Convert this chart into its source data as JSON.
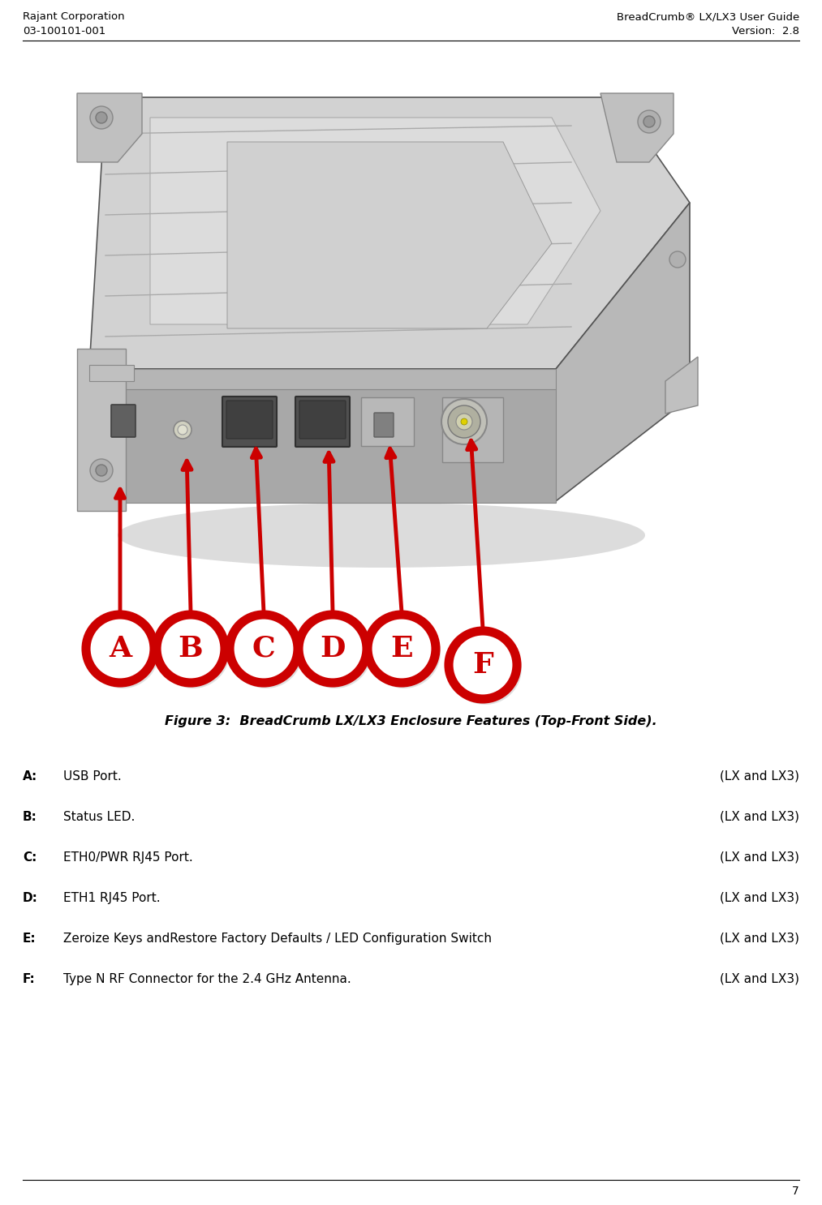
{
  "header_left_line1": "Rajant Corporation",
  "header_left_line2": "03-100101-001",
  "header_right_line1": "BreadCrumb® LX/LX3 User Guide",
  "header_right_line2": "Version:  2.8",
  "figure_caption": "Figure 3:  BreadCrumb LX/LX3 Enclosure Features (Top-Front Side).",
  "page_number": "7",
  "labels": [
    "A",
    "B",
    "C",
    "D",
    "E",
    "F"
  ],
  "items": [
    {
      "label": "A",
      "desc": "USB Port.",
      "suffix": "(LX and LX3)"
    },
    {
      "label": "B",
      "desc": "Status LED.",
      "suffix": "(LX and LX3)"
    },
    {
      "label": "C",
      "desc": "ETH0/PWR RJ45 Port.",
      "suffix": "(LX and LX3)"
    },
    {
      "label": "D",
      "desc": "ETH1 RJ45 Port.",
      "suffix": "(LX and LX3)"
    },
    {
      "label": "E",
      "desc": "Zeroize Keys andRestore Factory Defaults / LED Configuration Switch",
      "suffix": "(LX and LX3)"
    },
    {
      "label": "F",
      "desc": "Type N RF Connector for the 2.4 GHz Antenna.",
      "suffix": "(LX and LX3)"
    }
  ],
  "circle_color": "#cc0000",
  "arrow_color": "#cc0000",
  "text_color": "#000000",
  "bg_color": "#ffffff",
  "header_line_color": "#000000",
  "device_base_color": "#c8c8c8",
  "device_top_color": "#d8d8d8",
  "device_side_color": "#b0b0b0",
  "device_dark": "#888888",
  "device_line": "#555555",
  "circle_positions_x": [
    148,
    235,
    325,
    410,
    495,
    595
  ],
  "circle_positions_y": [
    800,
    800,
    800,
    800,
    800,
    820
  ],
  "arrow_tips_x": [
    148,
    230,
    315,
    405,
    480,
    580
  ],
  "arrow_tips_y": [
    595,
    560,
    545,
    550,
    545,
    535
  ],
  "circle_r": 42,
  "circle_lw": 8
}
